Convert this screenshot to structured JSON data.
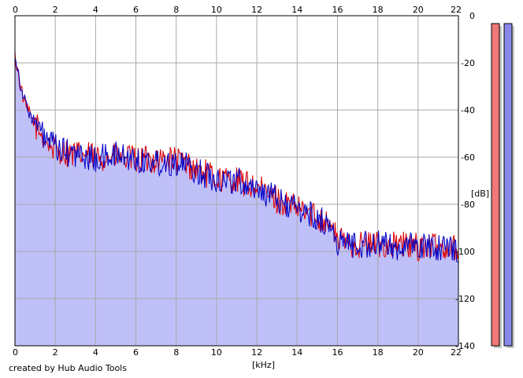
{
  "credit": "created by Hub Audio Tools",
  "colors": {
    "background": "#ffffff",
    "plot_area": "#ffffff",
    "fill": "#c0c0f8",
    "grid": "#a8a8a8",
    "axis": "#000000",
    "left_channel": "#e00000",
    "right_channel": "#0000c8",
    "meter_left_fill": "#f07878",
    "meter_right_fill": "#8888e8"
  },
  "chart_data": {
    "type": "area",
    "title": "",
    "xlabel": "[kHz]",
    "ylabel": "[dB]",
    "x_ticks": [
      "0",
      "2",
      "4",
      "6",
      "8",
      "10",
      "12",
      "14",
      "16",
      "18",
      "20",
      "22"
    ],
    "y_ticks": [
      "0",
      "-20",
      "-40",
      "-60",
      "-80",
      "-100",
      "-120",
      "-140"
    ],
    "xlim": [
      0,
      22
    ],
    "ylim": [
      -140,
      0
    ],
    "grid": true,
    "x": [
      0,
      0.25,
      0.5,
      1,
      1.5,
      2,
      2.5,
      3,
      3.5,
      4,
      5,
      6,
      7,
      8,
      9,
      10,
      11,
      12,
      13,
      14,
      15,
      15.6,
      16,
      17,
      18,
      19,
      20,
      21,
      22
    ],
    "series": [
      {
        "values": [
          -17,
          -29,
          -38,
          -46,
          -53,
          -57,
          -58,
          -59,
          -59,
          -60,
          -60,
          -61,
          -61,
          -61,
          -65,
          -69,
          -70,
          -73,
          -78,
          -82,
          -85,
          -88,
          -95,
          -97,
          -97,
          -97,
          -98,
          -98,
          -98
        ]
      },
      {
        "values": [
          -16,
          -28,
          -37,
          -46,
          -52,
          -56,
          -58,
          -59,
          -60,
          -61,
          -59,
          -61,
          -62,
          -62,
          -66,
          -69,
          -70,
          -73,
          -78,
          -82,
          -86,
          -89,
          -96,
          -97,
          -97,
          -98,
          -98,
          -98,
          -99
        ]
      }
    ],
    "meters": {
      "type": "bar",
      "categories": [
        "",
        ""
      ],
      "values": [
        -140,
        -140
      ]
    }
  }
}
